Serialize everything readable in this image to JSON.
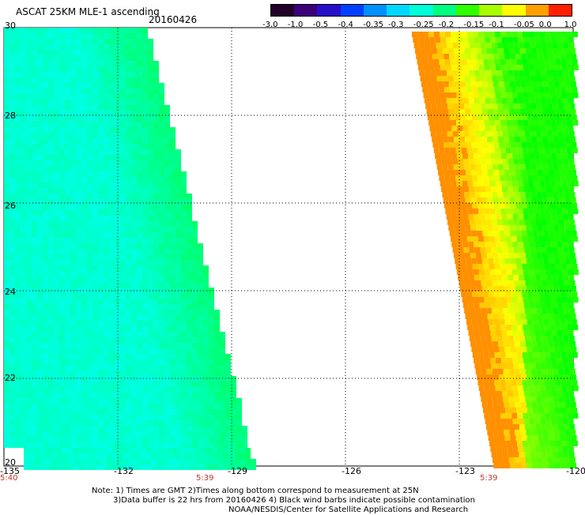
{
  "header": {
    "title": "ASCAT 25KM MLE-1 ascending",
    "date": "20160426"
  },
  "colorbar": {
    "labels": [
      "-3.0",
      "-1.0",
      "-0.5",
      "-0.4",
      "-0.35",
      "-0.3",
      "-0.25",
      "-0.2",
      "-0.15",
      "-0.1",
      "-0.05",
      "0.0",
      "1.0"
    ],
    "colors": [
      "#200028",
      "#3c0078",
      "#2810c8",
      "#0040ff",
      "#0090ff",
      "#00d8ff",
      "#00ffd8",
      "#00ff80",
      "#30ff00",
      "#a8ff00",
      "#ffff00",
      "#ffa000",
      "#ff2000"
    ]
  },
  "map": {
    "lon_labels": [
      "-135",
      "-132",
      "-129",
      "-126",
      "-123",
      "-120"
    ],
    "lat_labels": [
      "30",
      "28",
      "26",
      "24",
      "22",
      "20"
    ],
    "time_labels": [
      "5:40",
      "5:39",
      "5:39"
    ],
    "lon_range": [
      -135,
      -120
    ],
    "lat_range": [
      20,
      30
    ],
    "grid": true,
    "swaths": [
      {
        "name": "west",
        "color_low": "#00ffff",
        "color_high": "#00ff00"
      },
      {
        "name": "east",
        "color_low": "#00ff00",
        "color_high": "#ff8000"
      }
    ]
  },
  "notes": {
    "line1": "Note: 1) Times are GMT 2)Times along bottom correspond to measurement at 25N",
    "line2": "3)Data buffer is 22 hrs from 20160426 4) Black wind barbs indicate possible contamination",
    "line3": "NOAA/NESDIS/Center for Satellite Applications and Research"
  }
}
